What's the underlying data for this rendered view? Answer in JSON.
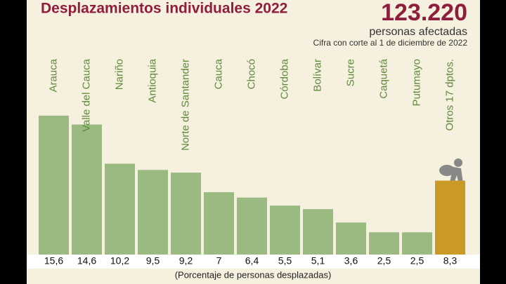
{
  "chart_data": {
    "type": "bar",
    "title": "Desplazamientos individuales 2022",
    "headline": "123.220",
    "subtitle": "personas afectadas",
    "note": "Cifra con corte al 1 de diciembre de 2022",
    "footnote": "(Porcentaje de personas desplazadas)",
    "categories": [
      "Arauca",
      "Valle del Cauca",
      "Nariño",
      "Antioquia",
      "Norte de Santander",
      "Cauca",
      "Chocó",
      "Córdoba",
      "Bolívar",
      "Sucre",
      "Caquetá",
      "Putumayo",
      "Otros 17 dptos."
    ],
    "values": [
      15.6,
      14.6,
      10.2,
      9.5,
      9.2,
      7,
      6.4,
      5.5,
      5.1,
      3.6,
      2.5,
      2.5,
      8.3
    ],
    "value_labels": [
      "15,6",
      "14,6",
      "10,2",
      "9,5",
      "9,2",
      "7",
      "6,4",
      "5,5",
      "5,1",
      "3,6",
      "2,5",
      "2,5",
      "8,3"
    ],
    "colors": [
      "#9aba82",
      "#9aba82",
      "#9aba82",
      "#9aba82",
      "#9aba82",
      "#9aba82",
      "#9aba82",
      "#9aba82",
      "#9aba82",
      "#9aba82",
      "#9aba82",
      "#9aba82",
      "#c99a26"
    ]
  }
}
